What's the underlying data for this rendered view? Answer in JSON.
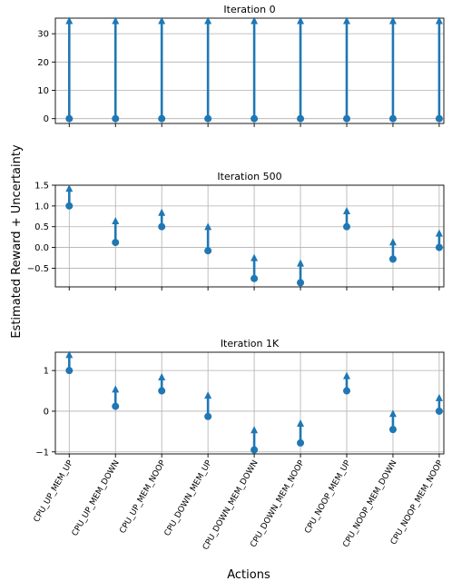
{
  "figure": {
    "xlabel": "Actions",
    "ylabel": "Estimated Reward + Uncertainty",
    "color": "#1f77b4"
  },
  "chart_data": [
    {
      "type": "scatter",
      "title": "Iteration 0",
      "categories": [
        "CPU_UP_MEM_UP",
        "CPU_UP_MEM_DOWN",
        "CPU_UP_MEM_NOOP",
        "CPU_DOWN_MEM_UP",
        "CPU_DOWN_MEM_DOWN",
        "CPU_DOWN_MEM_NOOP",
        "CPU_NOOP_MEM_UP",
        "CPU_NOOP_MEM_DOWN",
        "CPU_NOOP_MEM_NOOP"
      ],
      "estimated_reward": [
        0,
        0,
        0,
        0,
        0,
        0,
        0,
        0,
        0
      ],
      "reward_plus_uncertainty": [
        35,
        35,
        35,
        35,
        35,
        35,
        35,
        35,
        35
      ],
      "ylim": [
        -1.7,
        35.5
      ],
      "yticks": [
        0,
        10,
        20,
        30
      ],
      "grid": true
    },
    {
      "type": "scatter",
      "title": "Iteration 500",
      "categories": [
        "CPU_UP_MEM_UP",
        "CPU_UP_MEM_DOWN",
        "CPU_UP_MEM_NOOP",
        "CPU_DOWN_MEM_UP",
        "CPU_DOWN_MEM_DOWN",
        "CPU_DOWN_MEM_NOOP",
        "CPU_NOOP_MEM_UP",
        "CPU_NOOP_MEM_DOWN",
        "CPU_NOOP_MEM_NOOP"
      ],
      "estimated_reward": [
        1.0,
        0.12,
        0.5,
        -0.08,
        -0.75,
        -0.85,
        0.5,
        -0.28,
        0.0
      ],
      "reward_plus_uncertainty": [
        1.45,
        0.67,
        0.87,
        0.53,
        -0.22,
        -0.35,
        0.91,
        0.16,
        0.37
      ],
      "ylim": [
        -0.95,
        1.5
      ],
      "yticks": [
        -0.5,
        0.0,
        0.5,
        1.0,
        1.5
      ],
      "ytick_labels": [
        "−0.5",
        "0.0",
        "0.5",
        "1.0",
        "1.5"
      ],
      "grid": true
    },
    {
      "type": "scatter",
      "title": "Iteration 1K",
      "categories": [
        "CPU_UP_MEM_UP",
        "CPU_UP_MEM_DOWN",
        "CPU_UP_MEM_NOOP",
        "CPU_DOWN_MEM_UP",
        "CPU_DOWN_MEM_DOWN",
        "CPU_DOWN_MEM_NOOP",
        "CPU_NOOP_MEM_UP",
        "CPU_NOOP_MEM_DOWN",
        "CPU_NOOP_MEM_NOOP"
      ],
      "estimated_reward": [
        1.0,
        0.12,
        0.5,
        -0.13,
        -0.95,
        -0.78,
        0.5,
        -0.45,
        0.0
      ],
      "reward_plus_uncertainty": [
        1.42,
        0.57,
        0.87,
        0.42,
        -0.43,
        -0.27,
        0.9,
        -0.03,
        0.36
      ],
      "ylim": [
        -1.05,
        1.45
      ],
      "yticks": [
        -1,
        0,
        1
      ],
      "ytick_labels": [
        "−1",
        "0",
        "1"
      ],
      "grid": true
    }
  ]
}
